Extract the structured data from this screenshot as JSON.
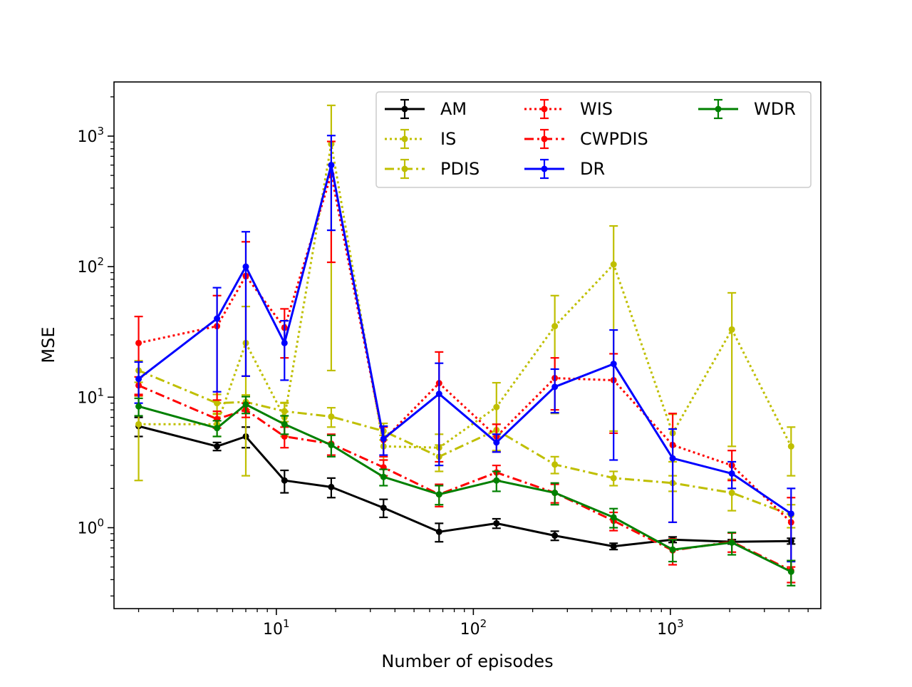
{
  "chart_data": {
    "type": "line",
    "title": "",
    "xlabel": "Number of episodes",
    "ylabel": "MSE",
    "xscale": "log",
    "yscale": "log",
    "xlim": [
      1.5,
      5800
    ],
    "ylim": [
      0.24,
      2600
    ],
    "grid": false,
    "legend": {
      "placement": "top-right",
      "columns": 3
    },
    "x_ticks": [
      {
        "value": 10,
        "base": "10",
        "exp": "1"
      },
      {
        "value": 100,
        "base": "10",
        "exp": "2"
      },
      {
        "value": 1000,
        "base": "10",
        "exp": "3"
      }
    ],
    "y_ticks": [
      {
        "value": 1,
        "base": "10",
        "exp": "0"
      },
      {
        "value": 10,
        "base": "10",
        "exp": "1"
      },
      {
        "value": 100,
        "base": "10",
        "exp": "2"
      },
      {
        "value": 1000,
        "base": "10",
        "exp": "3"
      }
    ],
    "x": [
      2,
      5,
      7,
      11,
      19,
      35,
      67,
      131,
      259,
      515,
      1027,
      2051,
      4099
    ],
    "series": [
      {
        "name": "AM",
        "color": "#000000",
        "linestyle": "solid",
        "values": [
          6.0,
          4.2,
          5.0,
          2.3,
          2.05,
          1.42,
          0.93,
          1.08,
          0.87,
          0.72,
          0.81,
          0.78,
          0.79
        ],
        "lower": [
          5.0,
          3.9,
          4.1,
          1.85,
          1.7,
          1.2,
          0.78,
          0.99,
          0.8,
          0.68,
          0.77,
          0.75,
          0.75
        ],
        "upper": [
          7.0,
          4.5,
          5.9,
          2.75,
          2.4,
          1.65,
          1.08,
          1.17,
          0.94,
          0.76,
          0.85,
          0.81,
          0.83
        ]
      },
      {
        "name": "IS",
        "color": "#bfbf00",
        "linestyle": "dotted",
        "values": [
          6.2,
          6.2,
          26,
          7.0,
          870,
          4.2,
          4.1,
          8.4,
          35,
          104,
          5.3,
          33,
          4.2
        ],
        "lower": [
          2.3,
          5.0,
          2.5,
          5.0,
          16,
          3.3,
          3.0,
          3.9,
          7.5,
          5.5,
          3.2,
          4.2,
          2.5
        ],
        "upper": [
          10.2,
          7.4,
          49.5,
          9.0,
          1720,
          5.1,
          5.2,
          12.9,
          60,
          205,
          7.4,
          63,
          5.9
        ]
      },
      {
        "name": "PDIS",
        "color": "#bfbf00",
        "linestyle": "dashdot",
        "values": [
          16,
          9.0,
          9.2,
          7.8,
          7.1,
          5.5,
          3.5,
          5.6,
          3.05,
          2.4,
          2.2,
          1.85,
          1.25
        ],
        "lower": [
          13,
          7.5,
          8.0,
          6.5,
          5.9,
          4.7,
          2.7,
          5.0,
          2.6,
          2.1,
          1.9,
          1.35,
          1.0
        ],
        "upper": [
          19,
          10.5,
          10.4,
          9.1,
          8.3,
          6.3,
          4.3,
          6.2,
          3.5,
          2.7,
          2.5,
          2.35,
          1.5
        ]
      },
      {
        "name": "WIS",
        "color": "#ff0000",
        "linestyle": "dotted",
        "values": [
          26,
          35,
          85,
          34,
          510,
          4.7,
          12.8,
          5.0,
          14,
          13.5,
          4.3,
          3.0,
          1.1
        ],
        "lower": [
          10.5,
          9.5,
          14.5,
          20,
          108,
          3.5,
          3.2,
          3.8,
          8,
          5.3,
          1.1,
          2.3,
          0.5
        ],
        "upper": [
          41.5,
          60,
          155,
          47.5,
          910,
          5.9,
          22.2,
          6.2,
          20,
          21.5,
          7.5,
          3.9,
          1.7
        ]
      },
      {
        "name": "CWPDIS",
        "color": "#ff0000",
        "linestyle": "dashdot",
        "values": [
          12.3,
          6.8,
          8.0,
          5.0,
          4.4,
          2.9,
          1.8,
          2.65,
          1.85,
          1.13,
          0.67,
          0.78,
          0.47
        ],
        "lower": [
          10.3,
          5.8,
          7.0,
          4.1,
          3.6,
          2.5,
          1.45,
          2.3,
          1.55,
          0.95,
          0.52,
          0.65,
          0.38
        ],
        "upper": [
          14.3,
          7.8,
          9.0,
          5.9,
          5.2,
          3.3,
          2.15,
          3.0,
          2.15,
          1.31,
          0.82,
          0.91,
          0.56
        ]
      },
      {
        "name": "DR",
        "color": "#0000ff",
        "linestyle": "solid",
        "values": [
          13.8,
          40,
          100,
          26,
          600,
          4.8,
          10.6,
          4.5,
          12.0,
          18.0,
          3.4,
          2.6,
          1.28
        ],
        "lower": [
          9.0,
          11,
          14.5,
          13.5,
          190,
          3.6,
          3.0,
          3.8,
          7.6,
          3.3,
          1.1,
          2.0,
          0.55
        ],
        "upper": [
          18.6,
          69,
          185,
          38.5,
          1010,
          6.0,
          18.2,
          5.2,
          16.4,
          32.7,
          5.7,
          3.2,
          2.0
        ]
      },
      {
        "name": "WDR",
        "color": "#008000",
        "linestyle": "solid",
        "values": [
          8.5,
          5.8,
          8.8,
          6.2,
          4.3,
          2.45,
          1.8,
          2.3,
          1.85,
          1.2,
          0.68,
          0.77,
          0.46
        ],
        "lower": [
          7.2,
          5.0,
          7.5,
          5.2,
          3.5,
          2.1,
          1.5,
          1.9,
          1.5,
          1.0,
          0.55,
          0.62,
          0.36
        ],
        "upper": [
          9.8,
          6.6,
          10.1,
          7.2,
          5.1,
          2.8,
          2.1,
          2.7,
          2.2,
          1.4,
          0.81,
          0.92,
          0.56
        ]
      }
    ]
  }
}
